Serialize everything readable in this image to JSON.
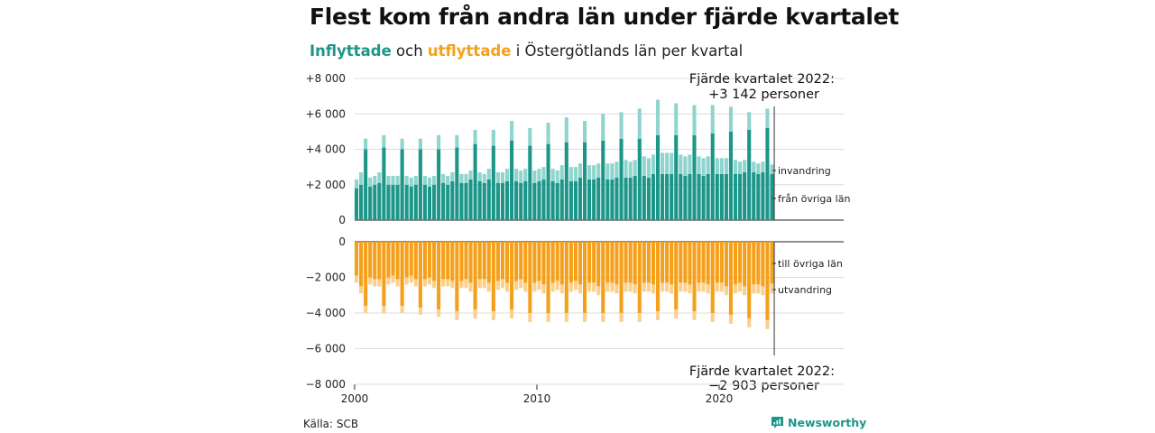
{
  "title": "Flest kom från andra län under fjärde kvartalet",
  "subtitle": {
    "in_word": "Inflyttade",
    "and_word": "och",
    "out_word": "utflyttade",
    "rest": "i Östergötlands län per kvartal"
  },
  "source": "Källa: SCB",
  "brand": "Newsworthy",
  "colors": {
    "inflow_dark": "#1b9688",
    "inflow_light": "#8fd5cd",
    "outflow_dark": "#f5a01a",
    "outflow_light": "#fad08f",
    "grid": "#dcdcdc",
    "axis": "#222222"
  },
  "chart_data": {
    "type": "bar",
    "stacked": true,
    "x_axis": {
      "start": 2000,
      "tick_labels": [
        "2000",
        "2010",
        "2020"
      ],
      "period": "kvartal"
    },
    "panels": [
      {
        "name": "inflow",
        "ylim": [
          0,
          8000
        ],
        "yticks": [
          "0",
          "+2 000",
          "+4 000",
          "+6 000",
          "+8 000"
        ],
        "series": [
          {
            "name": "från övriga län",
            "values": [
              1800,
              2000,
              4000,
              1900,
              2000,
              2100,
              4100,
              2000,
              2000,
              2000,
              4000,
              2000,
              1900,
              2000,
              4000,
              2000,
              1900,
              2000,
              4000,
              2100,
              2000,
              2200,
              4100,
              2100,
              2100,
              2300,
              4300,
              2200,
              2100,
              2300,
              4200,
              2100,
              2100,
              2200,
              4500,
              2200,
              2100,
              2200,
              4200,
              2100,
              2200,
              2300,
              4300,
              2200,
              2100,
              2300,
              4400,
              2200,
              2200,
              2400,
              4400,
              2300,
              2300,
              2400,
              4500,
              2300,
              2300,
              2400,
              4600,
              2400,
              2400,
              2500,
              4600,
              2500,
              2400,
              2600,
              4800,
              2600,
              2600,
              2600,
              4800,
              2600,
              2500,
              2600,
              4800,
              2600,
              2500,
              2600,
              4900,
              2600,
              2600,
              2600,
              5000,
              2600,
              2600,
              2700,
              5100,
              2700,
              2600,
              2700,
              5200,
              2600
            ],
            "color": "#1b9688"
          },
          {
            "name": "invandring",
            "values": [
              500,
              700,
              600,
              500,
              500,
              600,
              700,
              500,
              500,
              500,
              600,
              500,
              500,
              500,
              600,
              500,
              500,
              500,
              800,
              500,
              500,
              500,
              700,
              500,
              500,
              500,
              800,
              500,
              500,
              600,
              900,
              600,
              600,
              700,
              1100,
              700,
              700,
              700,
              1000,
              700,
              700,
              700,
              1200,
              700,
              700,
              800,
              1400,
              800,
              800,
              800,
              1200,
              800,
              800,
              800,
              1500,
              900,
              900,
              900,
              1500,
              1000,
              900,
              900,
              1700,
              1100,
              1100,
              1100,
              2000,
              1200,
              1200,
              1200,
              1800,
              1100,
              1100,
              1100,
              1700,
              1000,
              1000,
              1000,
              1600,
              900,
              900,
              900,
              1400,
              800,
              700,
              700,
              1000,
              600,
              600,
              600,
              1100,
              542
            ],
            "color": "#8fd5cd"
          }
        ],
        "annotation": {
          "label": "Fjärde kvartalet 2022:",
          "value": "+3 142 personer"
        },
        "series_labels": [
          "invandring",
          "från övriga län"
        ]
      },
      {
        "name": "outflow",
        "ylim": [
          -8000,
          0
        ],
        "yticks": [
          "0",
          "−2 000",
          "−4 000",
          "−6 000",
          "−8 000"
        ],
        "series": [
          {
            "name": "till övriga län",
            "values": [
              -1900,
              -2500,
              -3600,
              -2000,
              -2100,
              -2100,
              -3600,
              -2000,
              -1900,
              -2100,
              -3600,
              -2000,
              -1900,
              -2100,
              -3700,
              -2100,
              -2000,
              -2200,
              -3800,
              -2100,
              -2100,
              -2200,
              -3900,
              -2200,
              -2100,
              -2300,
              -3800,
              -2100,
              -2100,
              -2300,
              -3900,
              -2200,
              -2100,
              -2300,
              -3800,
              -2200,
              -2100,
              -2300,
              -4000,
              -2300,
              -2200,
              -2400,
              -4000,
              -2300,
              -2200,
              -2400,
              -4000,
              -2300,
              -2200,
              -2400,
              -4000,
              -2300,
              -2300,
              -2500,
              -4000,
              -2300,
              -2300,
              -2400,
              -4000,
              -2300,
              -2300,
              -2400,
              -4000,
              -2300,
              -2300,
              -2400,
              -3900,
              -2300,
              -2300,
              -2400,
              -3800,
              -2300,
              -2300,
              -2400,
              -3900,
              -2300,
              -2300,
              -2400,
              -4000,
              -2300,
              -2300,
              -2500,
              -4100,
              -2400,
              -2300,
              -2500,
              -4300,
              -2400,
              -2400,
              -2500,
              -4400,
              -2350
            ],
            "color": "#f5a01a"
          },
          {
            "name": "utvandring",
            "values": [
              -400,
              -400,
              -400,
              -400,
              -400,
              -400,
              -400,
              -400,
              -400,
              -400,
              -400,
              -400,
              -400,
              -400,
              -400,
              -400,
              -400,
              -400,
              -400,
              -400,
              -400,
              -400,
              -500,
              -400,
              -500,
              -500,
              -500,
              -500,
              -500,
              -500,
              -500,
              -500,
              -500,
              -500,
              -500,
              -500,
              -500,
              -500,
              -500,
              -500,
              -500,
              -500,
              -500,
              -500,
              -500,
              -500,
              -500,
              -500,
              -500,
              -500,
              -500,
              -500,
              -500,
              -500,
              -500,
              -500,
              -500,
              -500,
              -500,
              -500,
              -500,
              -500,
              -500,
              -500,
              -500,
              -500,
              -500,
              -500,
              -500,
              -500,
              -500,
              -500,
              -500,
              -500,
              -500,
              -500,
              -500,
              -500,
              -500,
              -500,
              -500,
              -500,
              -500,
              -500,
              -500,
              -500,
              -500,
              -500,
              -500,
              -500,
              -500,
              -553
            ],
            "color": "#fad08f"
          }
        ],
        "annotation": {
          "label": "Fjärde kvartalet 2022:",
          "value": "−2 903 personer"
        },
        "series_labels": [
          "till övriga län",
          "utvandring"
        ]
      }
    ],
    "grid": true
  }
}
